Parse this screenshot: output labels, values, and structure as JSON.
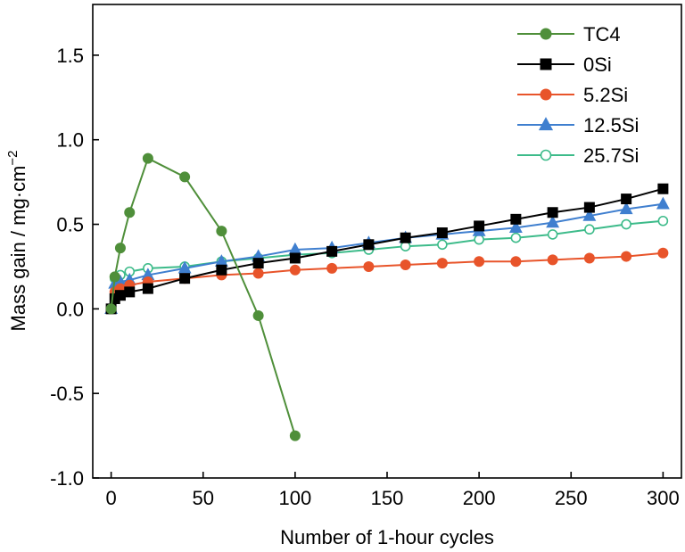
{
  "chart_data": {
    "type": "line",
    "title": "",
    "xlabel": "Number of 1-hour cycles",
    "ylabel_main": "Mass gain / mg·cm",
    "ylabel_sup": "−2",
    "xlim": [
      -10,
      310
    ],
    "ylim": [
      -1.0,
      1.8
    ],
    "xticks": [
      0,
      50,
      100,
      150,
      200,
      250,
      300
    ],
    "yticks": [
      -1.0,
      -0.5,
      0.0,
      0.5,
      1.0,
      1.5
    ],
    "xtick_labels": [
      "0",
      "50",
      "100",
      "150",
      "200",
      "250",
      "300"
    ],
    "ytick_labels": [
      "-1.0",
      "-0.5",
      "0.0",
      "0.5",
      "1.0",
      "1.5"
    ],
    "grid": false,
    "legend_position": "top-right",
    "series": [
      {
        "name": "TC4",
        "color": "#4f8f3a",
        "marker": "circle-filled",
        "x": [
          0,
          2,
          5,
          10,
          20,
          40,
          60,
          80,
          100
        ],
        "y": [
          0.0,
          0.19,
          0.36,
          0.57,
          0.89,
          0.78,
          0.46,
          -0.04,
          -0.75
        ]
      },
      {
        "name": "0Si",
        "color": "#000000",
        "marker": "square-filled",
        "x": [
          0,
          2,
          5,
          10,
          20,
          40,
          60,
          80,
          100,
          120,
          140,
          160,
          180,
          200,
          220,
          240,
          260,
          280,
          300
        ],
        "y": [
          0.0,
          0.06,
          0.08,
          0.1,
          0.12,
          0.18,
          0.23,
          0.27,
          0.3,
          0.34,
          0.38,
          0.42,
          0.45,
          0.49,
          0.53,
          0.57,
          0.6,
          0.65,
          0.71
        ]
      },
      {
        "name": "5.2Si",
        "color": "#e8542a",
        "marker": "circle-filled",
        "x": [
          0,
          2,
          5,
          10,
          20,
          40,
          60,
          80,
          100,
          120,
          140,
          160,
          180,
          200,
          220,
          240,
          260,
          280,
          300
        ],
        "y": [
          0.0,
          0.1,
          0.12,
          0.14,
          0.16,
          0.18,
          0.2,
          0.21,
          0.23,
          0.24,
          0.25,
          0.26,
          0.27,
          0.28,
          0.28,
          0.29,
          0.3,
          0.31,
          0.33
        ]
      },
      {
        "name": "12.5Si",
        "color": "#3f7fcf",
        "marker": "triangle-filled",
        "x": [
          0,
          2,
          5,
          10,
          20,
          40,
          60,
          80,
          100,
          120,
          140,
          160,
          180,
          200,
          220,
          240,
          260,
          280,
          300
        ],
        "y": [
          0.0,
          0.15,
          0.16,
          0.17,
          0.2,
          0.24,
          0.28,
          0.31,
          0.35,
          0.36,
          0.39,
          0.42,
          0.44,
          0.46,
          0.48,
          0.51,
          0.55,
          0.59,
          0.62
        ]
      },
      {
        "name": "25.7Si",
        "color": "#3dbb8a",
        "marker": "circle-open",
        "x": [
          0,
          2,
          5,
          10,
          20,
          40,
          60,
          80,
          100,
          120,
          140,
          160,
          180,
          200,
          220,
          240,
          260,
          280,
          300
        ],
        "y": [
          0.0,
          0.18,
          0.2,
          0.22,
          0.24,
          0.25,
          0.28,
          0.3,
          0.32,
          0.33,
          0.35,
          0.37,
          0.38,
          0.41,
          0.42,
          0.44,
          0.47,
          0.5,
          0.52
        ]
      }
    ]
  }
}
